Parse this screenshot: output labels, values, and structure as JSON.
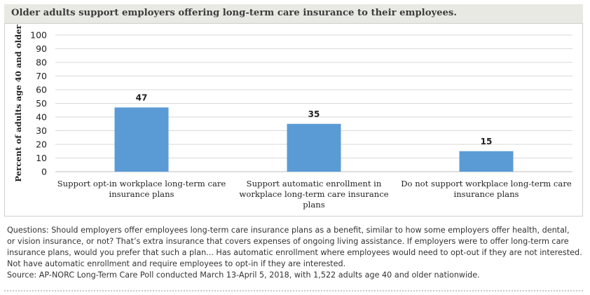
{
  "header": {
    "title": "Older adults support employers offering long-term care insurance to their employees."
  },
  "colors": {
    "bar": "#5b9bd5",
    "title_band": "#e9e9e4",
    "grid": "#d9d9d9"
  },
  "chart_data": {
    "type": "bar",
    "title": "",
    "xlabel": "",
    "ylabel": "Percent of adults age 40 and older",
    "ylim": [
      0,
      100
    ],
    "yticks": [
      0,
      10,
      20,
      30,
      40,
      50,
      60,
      70,
      80,
      90,
      100
    ],
    "grid": true,
    "categories": [
      [
        "Support opt-in workplace long-term care",
        "insurance plans"
      ],
      [
        "Support automatic enrollment in",
        "workplace long-term care insurance",
        "plans"
      ],
      [
        "Do not support workplace long-term care",
        "insurance plans"
      ]
    ],
    "values": [
      47,
      35,
      15
    ]
  },
  "notes": {
    "lines": [
      "Questions: Should employers offer employees long-term care insurance plans as a benefit, similar to how some employers offer health, dental,",
      "or vision insurance, or not? That’s extra insurance that covers expenses of ongoing living assistance. If employers were to offer long-term care",
      "insurance plans, would you prefer that such a plan... Has automatic enrollment where employees would need to opt-out if they are not interested.",
      "Not have automatic enrollment and require employees to opt-in if they are interested."
    ],
    "source": "Source: AP-NORC Long-Term Care Poll conducted March 13-April 5, 2018, with 1,522 adults age 40 and older nationwide."
  }
}
